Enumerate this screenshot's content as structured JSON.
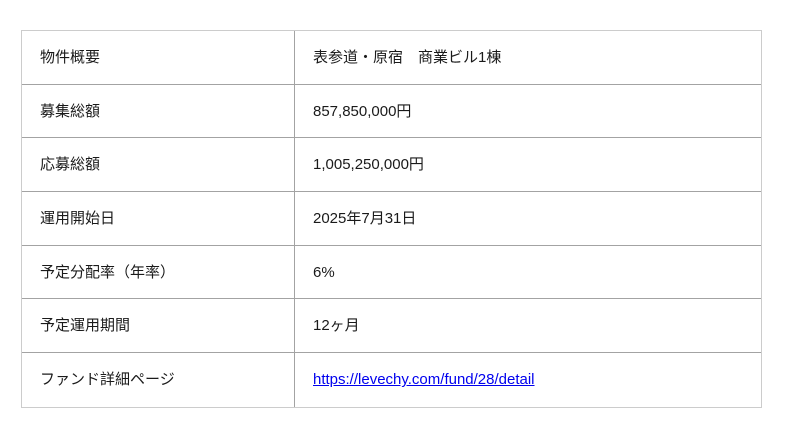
{
  "table": {
    "name": "fund-summary-table",
    "rows": [
      {
        "label": "物件概要",
        "value": "表参道・原宿　商業ビル1棟",
        "is_link": false
      },
      {
        "label": "募集総額",
        "value": "857,850,000円",
        "is_link": false
      },
      {
        "label": "応募総額",
        "value": "1,005,250,000円",
        "is_link": false
      },
      {
        "label": "運用開始日",
        "value": "2025年7月31日",
        "is_link": false
      },
      {
        "label": "予定分配率（年率）",
        "value": "6%",
        "is_link": false
      },
      {
        "label": "予定運用期間",
        "value": "12ヶ月",
        "is_link": false
      },
      {
        "label": "ファンド詳細ページ",
        "value": "https://levechy.com/fund/28/detail",
        "is_link": true
      }
    ]
  },
  "colors": {
    "background": "#ffffff",
    "text": "#1a1a1a",
    "link": "#0000ee",
    "outer_border": "#cccccc",
    "inner_border": "#a3a3a3"
  }
}
